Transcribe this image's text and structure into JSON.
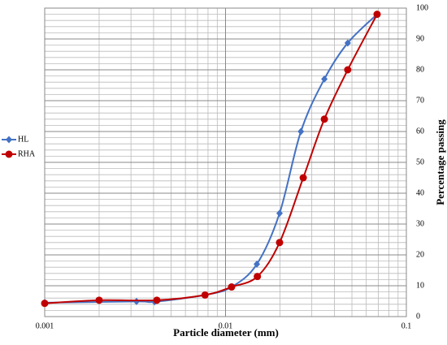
{
  "chart_data": {
    "type": "line",
    "x_label": "Particle diameter (mm)",
    "y_label": "Percentage passing",
    "x_scale": "log",
    "xlim": [
      0.001,
      0.1
    ],
    "xticks": [
      0.001,
      0.01,
      0.1
    ],
    "ylim": [
      0,
      100
    ],
    "yticks": [
      0,
      10,
      20,
      30,
      40,
      50,
      60,
      70,
      80,
      90,
      100
    ],
    "y_axis_side": "right",
    "grid": true,
    "legend": "left",
    "series": [
      {
        "name": "HL",
        "color": "#4472c4",
        "marker": "diamond",
        "x": [
          0.001,
          0.00322,
          0.00405,
          0.0077,
          0.0108,
          0.0149,
          0.0199,
          0.0261,
          0.0352,
          0.0474,
          0.0689
        ],
        "values": [
          4.5,
          4.9,
          4.8,
          7,
          9.6,
          17,
          33.5,
          60,
          77,
          88.7,
          98
        ]
      },
      {
        "name": "RHA",
        "color": "#c00000",
        "marker": "circle",
        "x": [
          0.001,
          0.002,
          0.00417,
          0.0077,
          0.0108,
          0.015,
          0.0199,
          0.0269,
          0.0352,
          0.0474,
          0.0689
        ],
        "values": [
          4.3,
          5.3,
          5.3,
          7,
          9.6,
          13,
          24,
          45,
          64,
          80,
          98
        ]
      }
    ]
  }
}
